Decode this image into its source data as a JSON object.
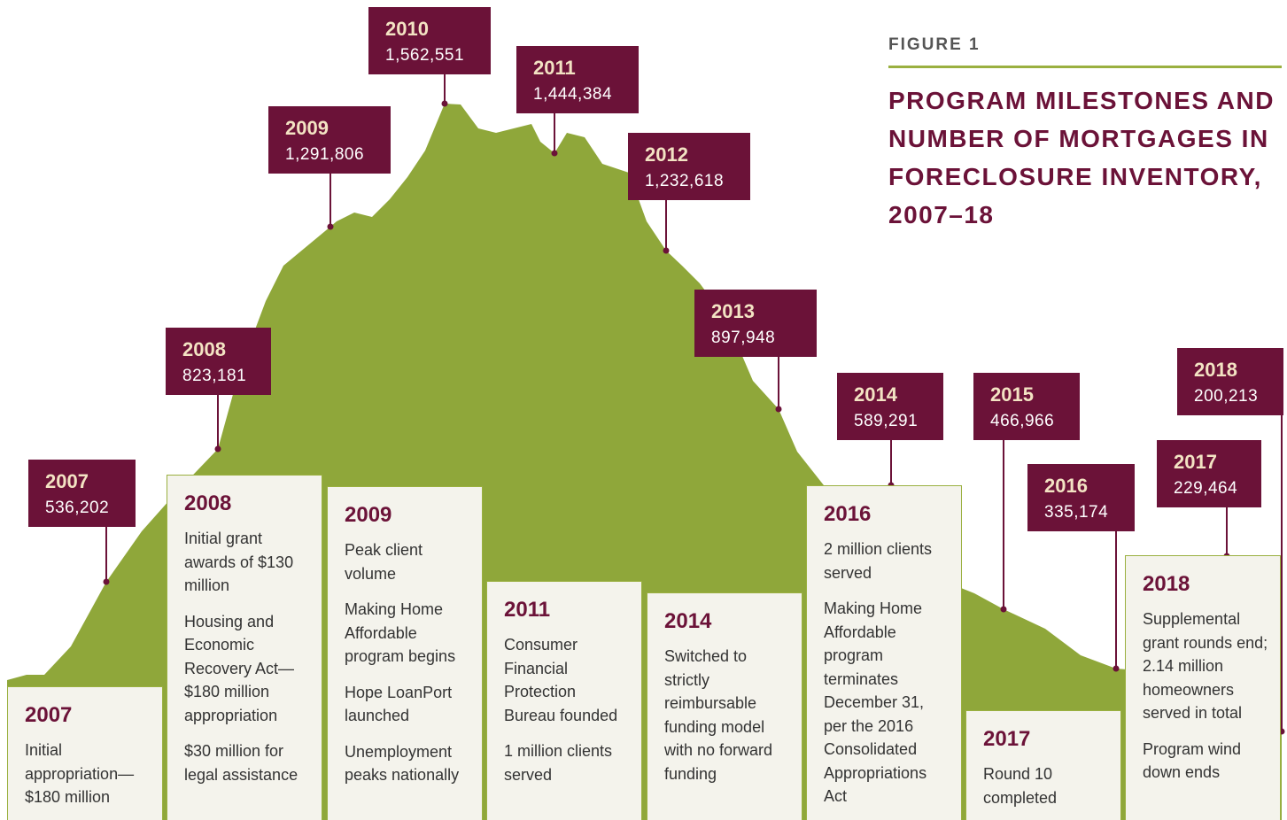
{
  "figure_label": "FIGURE 1",
  "title_lines": [
    "PROGRAM MILESTONES AND",
    "NUMBER OF MORTGAGES IN",
    "FORECLOSURE INVENTORY,",
    "2007–18"
  ],
  "callouts": [
    {
      "year": "2007",
      "value": "536,202"
    },
    {
      "year": "2008",
      "value": "823,181"
    },
    {
      "year": "2009",
      "value": "1,291,806"
    },
    {
      "year": "2010",
      "value": "1,562,551"
    },
    {
      "year": "2011",
      "value": "1,444,384"
    },
    {
      "year": "2012",
      "value": "1,232,618"
    },
    {
      "year": "2013",
      "value": "897,948"
    },
    {
      "year": "2014",
      "value": "589,291"
    },
    {
      "year": "2015",
      "value": "466,966"
    },
    {
      "year": "2016",
      "value": "335,174"
    },
    {
      "year": "2017",
      "value": "229,464"
    },
    {
      "year": "2018",
      "value": "200,213"
    }
  ],
  "milestones": [
    {
      "year": "2007",
      "items": [
        "Initial appropriation—$180 million"
      ]
    },
    {
      "year": "2008",
      "items": [
        "Initial grant awards of $130 million",
        "Housing and Economic Recovery Act—$180 million appropriation",
        "$30 million for legal assistance"
      ]
    },
    {
      "year": "2009",
      "items": [
        "Peak client volume",
        "Making Home Affordable program begins",
        "Hope LoanPort launched",
        "Unemployment peaks nationally"
      ]
    },
    {
      "year": "2011",
      "items": [
        "Consumer Financial Protection Bureau founded",
        "1 million clients served"
      ]
    },
    {
      "year": "2014",
      "items": [
        "Switched to strictly reimbursable funding model with no forward funding"
      ]
    },
    {
      "year": "2016",
      "items": [
        "2 million clients served",
        "Making Home Affordable program terminates December 31, per the 2016 Consolidated Appropriations Act"
      ]
    },
    {
      "year": "2017",
      "items": [
        "Round 10 completed"
      ]
    },
    {
      "year": "2018",
      "items": [
        "Supplemental grant rounds end; 2.14 million homeowners served in total",
        "Program wind down ends"
      ]
    }
  ]
}
